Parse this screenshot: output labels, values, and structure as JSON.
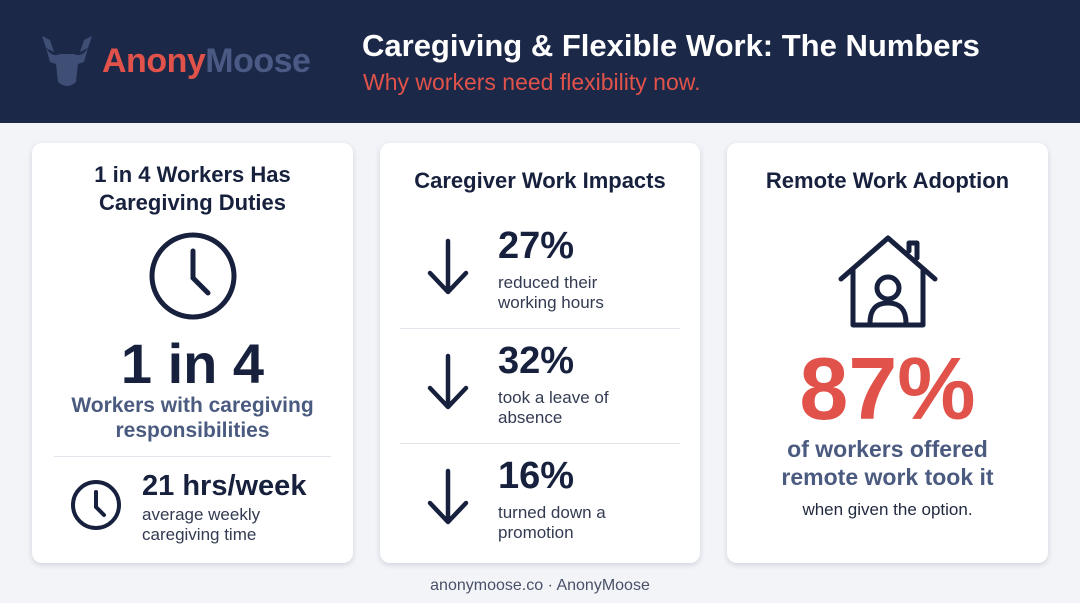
{
  "header": {
    "logo": {
      "part1": "Anony",
      "part2": "Moose"
    },
    "title": "Caregiving & Flexible Work: The Numbers",
    "subtitle": "Why workers need flexibility now."
  },
  "cards": [
    {
      "title": "1 in 4 Workers Has Caregiving Duties",
      "stat": "1 in 4",
      "caption": "Workers with caregiving responsibilities",
      "detail": {
        "stat": "21 hrs/week",
        "caption": "average weekly caregiving time"
      }
    },
    {
      "title": "Caregiver Work Impacts",
      "items": [
        {
          "stat": "27%",
          "caption": "reduced their working hours"
        },
        {
          "stat": "32%",
          "caption": "took a leave of absence"
        },
        {
          "stat": "16%",
          "caption": "turned down a promotion"
        }
      ]
    },
    {
      "title": "Remote Work Adoption",
      "stat": "87%",
      "caption": "of workers offered remote work took it",
      "note": "when given the option."
    }
  ],
  "footer": "anonymoose.co · AnonyMoose"
}
